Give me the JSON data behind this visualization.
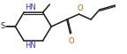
{
  "bg_color": "#ffffff",
  "line_color": "#1a1a1a",
  "o_color": "#cc6600",
  "n_color": "#3333bb",
  "s_color": "#1a1a1a",
  "figsize": [
    1.44,
    0.61
  ],
  "dpi": 100,
  "xlim": [
    0,
    144
  ],
  "ylim": [
    0,
    61
  ],
  "lw": 1.1,
  "lw_thin": 0.75,
  "font_size": 6.0
}
